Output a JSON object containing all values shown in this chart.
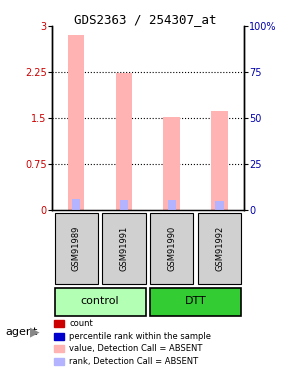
{
  "title": "GDS2363 / 254307_at",
  "samples": [
    "GSM91989",
    "GSM91991",
    "GSM91990",
    "GSM91992"
  ],
  "groups": [
    "control",
    "control",
    "DTT",
    "DTT"
  ],
  "bar_values_pink": [
    2.85,
    2.24,
    1.52,
    1.62
  ],
  "bar_values_blue": [
    0.18,
    0.17,
    0.16,
    0.15
  ],
  "ylim_left": [
    0,
    3
  ],
  "ylim_right": [
    0,
    100
  ],
  "yticks_left": [
    0,
    0.75,
    1.5,
    2.25,
    3
  ],
  "yticks_right": [
    0,
    25,
    50,
    75,
    100
  ],
  "ytick_labels_left": [
    "0",
    "0.75",
    "1.5",
    "2.25",
    "3"
  ],
  "ytick_labels_right": [
    "0",
    "25",
    "50",
    "75",
    "100%"
  ],
  "color_pink": "#ffb3b3",
  "color_blue": "#b3b3ff",
  "color_red": "#cc0000",
  "color_blue_dark": "#0000cc",
  "bar_width": 0.35,
  "group_colors": {
    "control": "#b3ffb3",
    "DTT": "#33cc33"
  },
  "group_label_color": {
    "control": "#000000",
    "DTT": "#000000"
  },
  "bg_color": "#ffffff",
  "grid_color": "#000000",
  "agent_label": "agent",
  "legend_items": [
    {
      "label": "count",
      "color": "#cc0000",
      "marker": "s"
    },
    {
      "label": "percentile rank within the sample",
      "color": "#0000cc",
      "marker": "s"
    },
    {
      "label": "value, Detection Call = ABSENT",
      "color": "#ffb3b3",
      "marker": "s"
    },
    {
      "label": "rank, Detection Call = ABSENT",
      "color": "#b3b3ff",
      "marker": "s"
    }
  ]
}
